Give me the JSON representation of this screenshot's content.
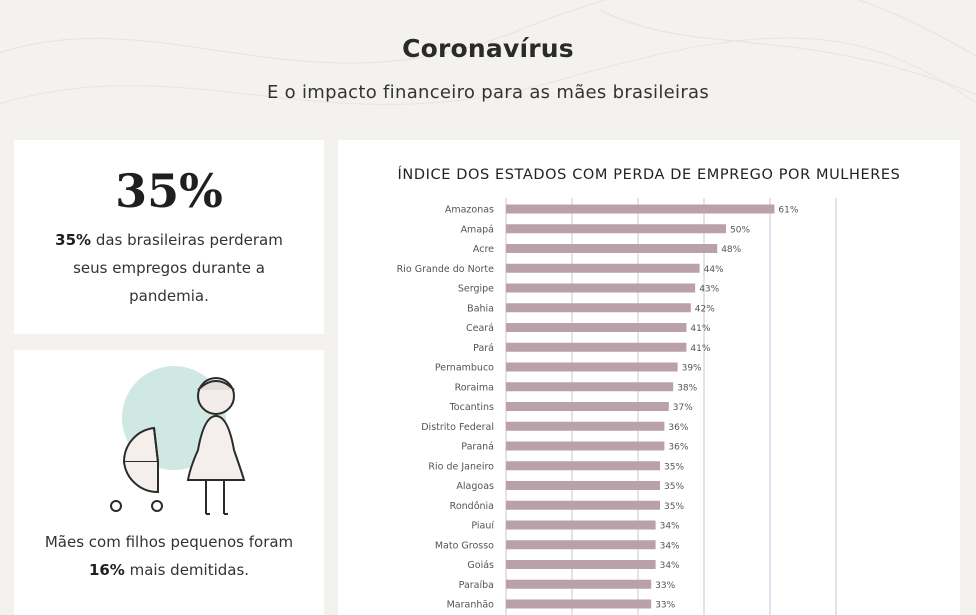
{
  "header": {
    "title": "Coronavírus",
    "subtitle": "E o impacto financeiro para as mães brasileiras"
  },
  "stat_card": {
    "big_number": "35%",
    "text_bold": "35%",
    "text_rest": " das brasileiras perderam seus empregos durante a pandemia."
  },
  "mothers_card": {
    "text_before": "Mães com filhos pequenos foram ",
    "text_bold": "16%",
    "text_after": " mais demitidas."
  },
  "colors": {
    "background": "#f4f2ef",
    "bar": "#b9a0a9",
    "circle": "#cfe8e4",
    "gridline": "#c9c4dc"
  },
  "chart_data": {
    "type": "bar",
    "orientation": "horizontal",
    "title": "ÍNDICE DOS ESTADOS COM PERDA DE EMPREGO POR MULHERES",
    "xlabel": "",
    "ylabel": "",
    "xlim": [
      0,
      100
    ],
    "grid": true,
    "categories": [
      "Amazonas",
      "Amapá",
      "Acre",
      "Rio Grande do Norte",
      "Sergipe",
      "Bahia",
      "Ceará",
      "Pará",
      "Pernambuco",
      "Roraima",
      "Tocantins",
      "Distrito Federal",
      "Paraná",
      "Rio de Janeiro",
      "Alagoas",
      "Rondônia",
      "Piauí",
      "Mato Grosso",
      "Goiás",
      "Paraíba",
      "Maranhão"
    ],
    "values": [
      61,
      50,
      48,
      44,
      43,
      42,
      41,
      41,
      39,
      38,
      37,
      36,
      36,
      35,
      35,
      35,
      34,
      34,
      34,
      33,
      33
    ],
    "value_labels": [
      "61%",
      "50%",
      "48%",
      "44%",
      "43%",
      "42%",
      "41%",
      "41%",
      "39%",
      "38%",
      "37%",
      "36%",
      "36%",
      "35%",
      "35%",
      "35%",
      "34%",
      "34%",
      "34%",
      "33%",
      "33%"
    ]
  }
}
